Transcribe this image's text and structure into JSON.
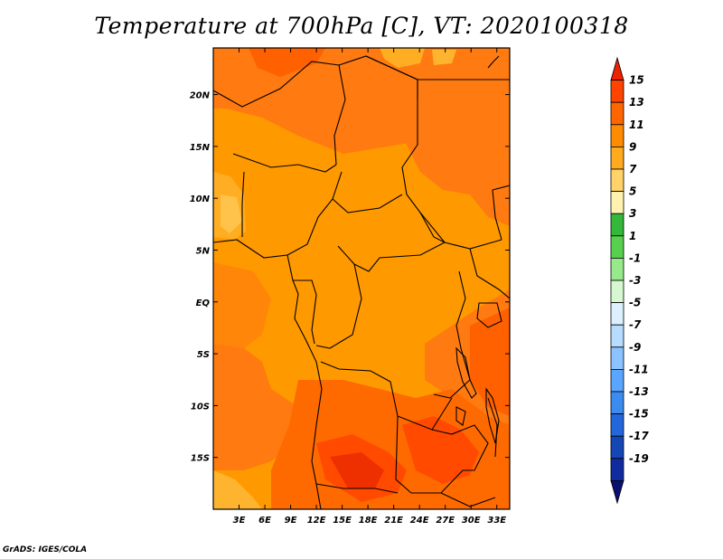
{
  "title": "Temperature at 700hPa [C], VT: 2020100318",
  "credit": "GrADS: IGES/COLA",
  "map": {
    "lon_range": [
      0,
      34.5
    ],
    "lat_range": [
      -20,
      24.5
    ],
    "lon_ticks": [
      {
        "value": 3,
        "label": "3E"
      },
      {
        "value": 6,
        "label": "6E"
      },
      {
        "value": 9,
        "label": "9E"
      },
      {
        "value": 12,
        "label": "12E"
      },
      {
        "value": 15,
        "label": "15E"
      },
      {
        "value": 18,
        "label": "18E"
      },
      {
        "value": 21,
        "label": "21E"
      },
      {
        "value": 24,
        "label": "24E"
      },
      {
        "value": 27,
        "label": "27E"
      },
      {
        "value": 30,
        "label": "30E"
      },
      {
        "value": 33,
        "label": "33E"
      }
    ],
    "lat_ticks": [
      {
        "value": 20,
        "label": "20N"
      },
      {
        "value": 15,
        "label": "15N"
      },
      {
        "value": 10,
        "label": "10N"
      },
      {
        "value": 5,
        "label": "5N"
      },
      {
        "value": 0,
        "label": "EQ"
      },
      {
        "value": -5,
        "label": "5S"
      },
      {
        "value": -10,
        "label": "10S"
      },
      {
        "value": -15,
        "label": "15S"
      }
    ]
  },
  "colorbar": {
    "levels": [
      "15",
      "13",
      "11",
      "9",
      "7",
      "5",
      "3",
      "1",
      "-1",
      "-3",
      "-5",
      "-7",
      "-9",
      "-11",
      "-13",
      "-15",
      "-17",
      "-19"
    ],
    "colors": [
      "#ee2200",
      "#ff4400",
      "#ff6600",
      "#ff8c00",
      "#ffab20",
      "#ffd36a",
      "#fff2b0",
      "#34b83a",
      "#58d04e",
      "#96ea8c",
      "#d6f7d0",
      "#dcf0ff",
      "#b6dcff",
      "#8cc2ff",
      "#5aa6ff",
      "#3c8cf0",
      "#2466dc",
      "#1446b4",
      "#102aa0",
      "#0a1070"
    ]
  },
  "regions": [
    {
      "name": "base",
      "color": "#ff9900"
    },
    {
      "name": "north-warm",
      "color": "#ff7a10"
    },
    {
      "name": "northwest-hot",
      "color": "#ff6000"
    },
    {
      "name": "northeast-warm",
      "color": "#ff7a10"
    },
    {
      "name": "west-warm",
      "color": "#ff8608"
    },
    {
      "name": "southwest-warm",
      "color": "#ff7a10"
    },
    {
      "name": "east-warm",
      "color": "#ff7a10"
    },
    {
      "name": "east-hot",
      "color": "#ff6000"
    },
    {
      "name": "south-warm",
      "color": "#ff6a00"
    },
    {
      "name": "south-hot-a",
      "color": "#ff4a00"
    },
    {
      "name": "south-hot-b",
      "color": "#ff4a00"
    },
    {
      "name": "south-core",
      "color": "#ee3000"
    },
    {
      "name": "cool-west-a",
      "color": "#ffad22"
    },
    {
      "name": "cool-west-b",
      "color": "#ffc24a"
    },
    {
      "name": "cool-sw",
      "color": "#ffb430"
    },
    {
      "name": "cool-north-a",
      "color": "#ffad22"
    },
    {
      "name": "cool-north-b",
      "color": "#ffb430"
    }
  ]
}
